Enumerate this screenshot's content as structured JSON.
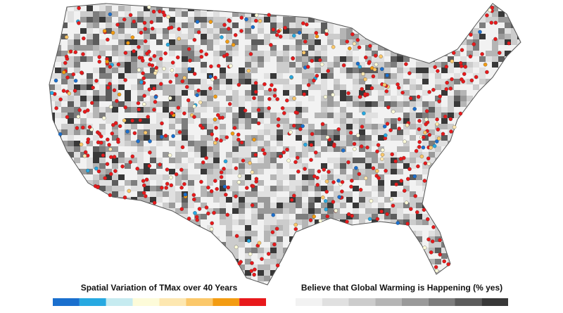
{
  "map": {
    "legends": [
      {
        "title": "Spatial Variation of TMax over 40 Years",
        "colors": [
          "#1a6fce",
          "#27a9e1",
          "#c6ebf0",
          "#fdfbd9",
          "#fde7b0",
          "#fbc86a",
          "#f39c12",
          "#e8191b"
        ]
      },
      {
        "title": "Believe that Global Warming is Happening (% yes)",
        "colors": [
          "#f2f2f2",
          "#e0e0e0",
          "#cccccc",
          "#b5b5b5",
          "#9a9a9a",
          "#7d7d7d",
          "#5c5c5c",
          "#383838"
        ]
      }
    ]
  }
}
